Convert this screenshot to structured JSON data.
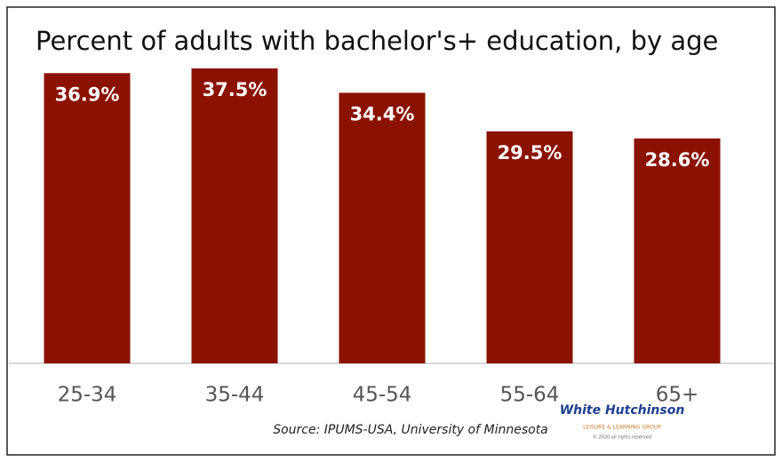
{
  "chart_data": {
    "type": "bar",
    "title": "Percent of adults with bachelor's+ education, by age",
    "categories": [
      "25-34",
      "35-44",
      "45-54",
      "55-64",
      "65+"
    ],
    "values": [
      36.9,
      37.5,
      34.4,
      29.5,
      28.6
    ],
    "value_labels": [
      "36.9%",
      "37.5%",
      "34.4%",
      "29.5%",
      "28.6%"
    ],
    "color": "#8b1200",
    "source": "Source: IPUMS-USA, University of Minnesota",
    "logo": {
      "name": "White Hutchinson",
      "tagline": "LEISURE & LEARNING GROUP",
      "note": "© 2020 all rights reserved"
    }
  }
}
